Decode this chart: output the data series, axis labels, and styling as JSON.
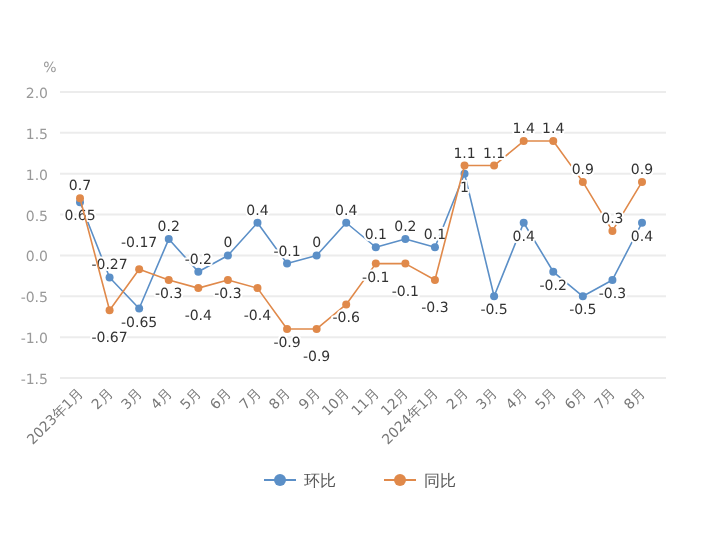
{
  "chart_data": {
    "type": "line",
    "ylabel": "%",
    "categories": [
      "2023年1月",
      "2月",
      "3月",
      "4月",
      "5月",
      "6月",
      "7月",
      "8月",
      "9月",
      "10月",
      "11月",
      "12月",
      "2024年1月",
      "2月",
      "3月",
      "4月",
      "5月",
      "6月",
      "7月",
      "8月"
    ],
    "series": [
      {
        "name": "环比",
        "color": "#5b8fc7",
        "values": [
          0.65,
          -0.27,
          -0.65,
          0.2,
          -0.2,
          0,
          0.4,
          -0.1,
          0,
          0.4,
          0.1,
          0.2,
          0.1,
          1,
          -0.5,
          0.4,
          -0.2,
          -0.5,
          -0.3,
          0.4
        ]
      },
      {
        "name": "同比",
        "color": "#e0894a",
        "values": [
          0.7,
          -0.67,
          -0.17,
          -0.3,
          -0.4,
          -0.3,
          -0.4,
          -0.9,
          -0.9,
          -0.6,
          -0.1,
          -0.1,
          -0.3,
          1.1,
          1.1,
          1.4,
          1.4,
          0.9,
          0.3,
          0.9
        ]
      }
    ],
    "ylim": [
      -1.5,
      2.0
    ],
    "yticks": [
      {
        "value": 2.0,
        "label": "2.0"
      },
      {
        "value": 1.5,
        "label": "1.5"
      },
      {
        "value": 1.0,
        "label": "1.0"
      },
      {
        "value": 0.5,
        "label": "0.5"
      },
      {
        "value": 0,
        "label": "0.0"
      },
      {
        "value": -0.5,
        "label": "-0.5"
      },
      {
        "value": -1.0,
        "label": "-1.0"
      },
      {
        "value": -1.5,
        "label": "-1.5"
      }
    ],
    "grid": "y",
    "legend": "bottom",
    "marker": "circle",
    "line_style": "solid",
    "data_labels": true
  }
}
